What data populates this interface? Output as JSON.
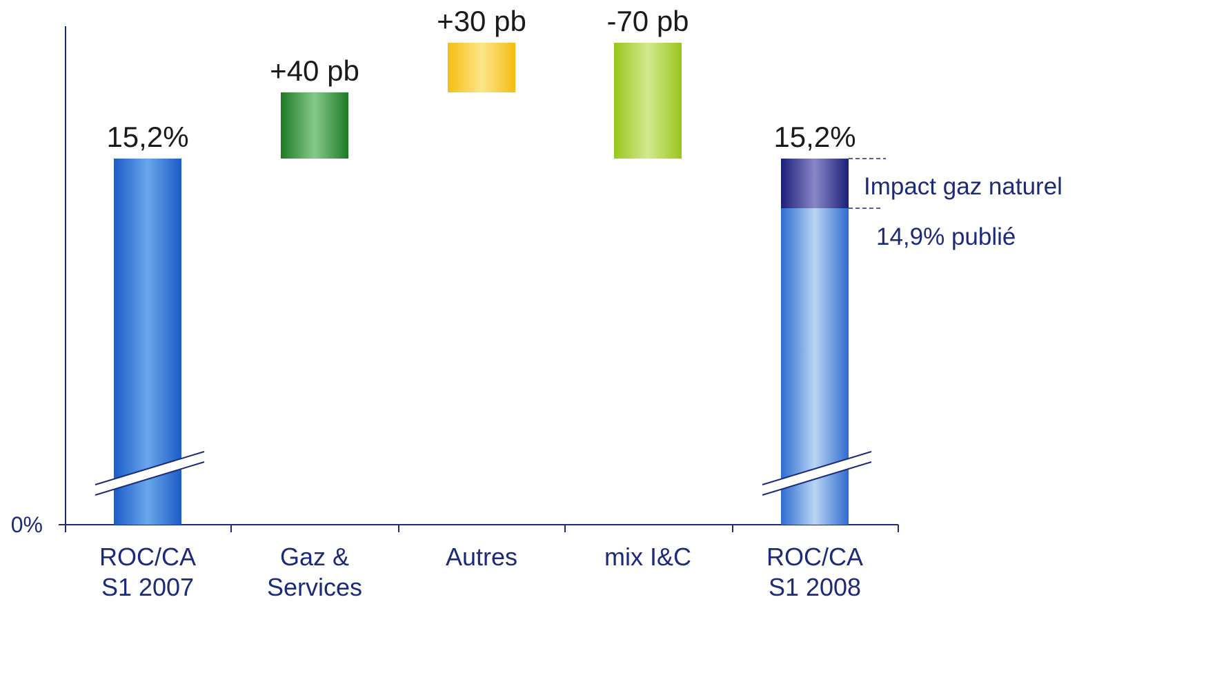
{
  "chart_data": {
    "type": "bar",
    "subtype": "waterfall",
    "y_tick_label": "0%",
    "categories": [
      {
        "id": "roc2007",
        "lines": [
          "ROC/CA",
          "S1 2007"
        ]
      },
      {
        "id": "gaz",
        "lines": [
          "Gaz &",
          "Services"
        ]
      },
      {
        "id": "autres",
        "lines": [
          "Autres"
        ]
      },
      {
        "id": "mix",
        "lines": [
          "mix I&C"
        ]
      },
      {
        "id": "roc2008",
        "lines": [
          "ROC/CA",
          "S1 2008"
        ]
      }
    ],
    "bars": [
      {
        "category": "roc2007",
        "kind": "total",
        "value": 15.2,
        "unit": "%",
        "label": "15,2%",
        "color": "#3d7fdc",
        "axis_break": true
      },
      {
        "category": "gaz",
        "kind": "delta",
        "value_bp": 40,
        "label": "+40 pb",
        "color": "#3f9a48"
      },
      {
        "category": "autres",
        "kind": "delta",
        "value_bp": 30,
        "label": "+30 pb",
        "color": "#f7c62c"
      },
      {
        "category": "mix",
        "kind": "delta",
        "value_bp": -70,
        "label": "-70 pb",
        "color": "#a9d23a"
      },
      {
        "category": "roc2008",
        "kind": "total",
        "value": 15.2,
        "unit": "%",
        "label": "15,2%",
        "color": "#7fa9e8",
        "axis_break": true,
        "segments": [
          {
            "name": "14,9% publié",
            "value": 14.9,
            "color": "#8cb4ec"
          },
          {
            "name": "Impact gaz naturel",
            "value": 0.3,
            "color": "#4b4fa8"
          }
        ]
      }
    ],
    "annotations": {
      "impact": "Impact gaz naturel",
      "published": "14,9% publié"
    },
    "colors": {
      "axis": "#1d2a7a",
      "text": "#1a1a1a"
    }
  }
}
